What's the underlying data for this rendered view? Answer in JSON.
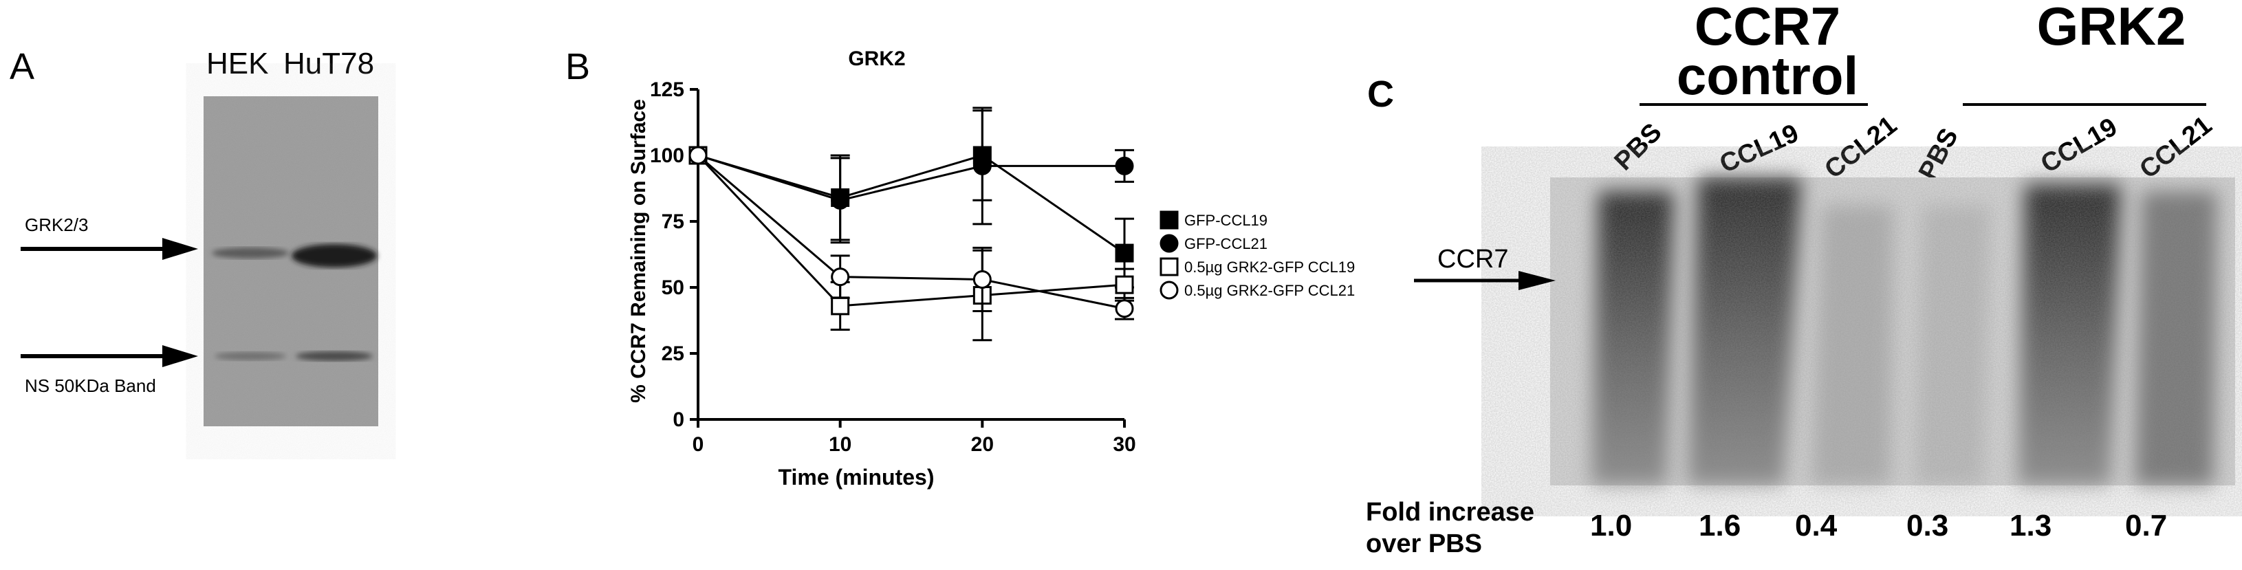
{
  "panel_a": {
    "letter": "A",
    "lanes": [
      "HEK",
      "HuT78"
    ],
    "band_labels": [
      "GRK2/3",
      "NS 50KDa Band"
    ]
  },
  "panel_b": {
    "letter": "B"
  },
  "panel_c": {
    "letter": "C",
    "group_titles": [
      {
        "line1": "CCR7",
        "line2": "control"
      },
      {
        "line1": "GRK2",
        "line2": ""
      }
    ],
    "lane_labels": [
      "PBS",
      "CCL19",
      "CCL21",
      "PBS",
      "CCL19",
      "CCL21"
    ],
    "band_label": "CCR7",
    "fold_label_line1": "Fold increase",
    "fold_label_line2": "over PBS",
    "fold_values": [
      "1.0",
      "1.6",
      "0.4",
      "0.3",
      "1.3",
      "0.7"
    ]
  },
  "chart_data": {
    "type": "line",
    "title": "GRK2",
    "xlabel": "Time (minutes)",
    "ylabel": "% CCR7 Remaining on Surface",
    "x": [
      0,
      10,
      20,
      30
    ],
    "xticks": [
      "0",
      "10",
      "20",
      "30"
    ],
    "xlim": [
      0,
      30
    ],
    "ylim": [
      0,
      125
    ],
    "yticks": [
      "0",
      "25",
      "50",
      "75",
      "100",
      "125"
    ],
    "legend_position": "right",
    "series": [
      {
        "name": "GFP-CCL19",
        "marker": "filled-square",
        "values": [
          100,
          84,
          100,
          63
        ],
        "errors": [
          0,
          16,
          17,
          13
        ]
      },
      {
        "name": "GFP-CCL21",
        "marker": "filled-circle",
        "values": [
          100,
          83,
          96,
          96
        ],
        "errors": [
          0,
          16,
          22,
          6
        ]
      },
      {
        "name": "0.5µg GRK2-GFP CCL19",
        "marker": "open-square",
        "values": [
          100,
          43,
          47,
          51
        ],
        "errors": [
          0,
          9,
          17,
          6
        ]
      },
      {
        "name": "0.5µg GRK2-GFP CCL21",
        "marker": "open-circle",
        "values": [
          100,
          54,
          53,
          42
        ],
        "errors": [
          0,
          8,
          12,
          4
        ]
      }
    ]
  }
}
